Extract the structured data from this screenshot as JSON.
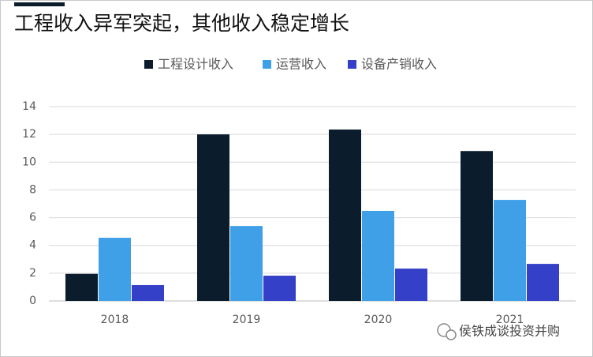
{
  "chart_data": {
    "type": "bar",
    "title": "工程收入异军突起，其他收入稳定增长",
    "categories": [
      "2018",
      "2019",
      "2020",
      "2021"
    ],
    "series": [
      {
        "name": "工程设计收入",
        "color": "#0b1c2c",
        "values": [
          1.95,
          12.0,
          12.35,
          10.8
        ]
      },
      {
        "name": "运营收入",
        "color": "#3fa0e8",
        "values": [
          4.55,
          5.4,
          6.49,
          7.28
        ]
      },
      {
        "name": "设备产销收入",
        "color": "#3440c8",
        "values": [
          1.14,
          1.82,
          2.33,
          2.67
        ]
      }
    ],
    "ylim": [
      0,
      14
    ],
    "yticks": [
      0,
      2,
      4,
      6,
      8,
      10,
      12,
      14
    ],
    "grid": true,
    "legend": "top"
  },
  "watermark": "侯铁成谈投资并购"
}
